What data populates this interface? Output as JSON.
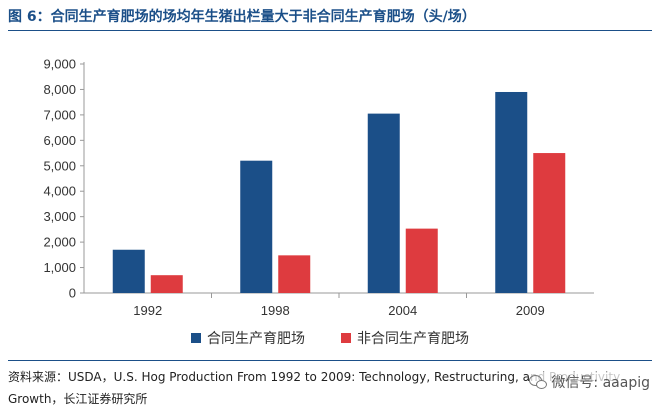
{
  "figure_title": "图 6：合同生产育肥场的场均年生猪出栏量大于非合同生产育肥场（头/场）",
  "chart_data": {
    "type": "bar",
    "categories": [
      "1992",
      "1998",
      "2004",
      "2009"
    ],
    "series": [
      {
        "name": "合同生产育肥场",
        "values": [
          1700,
          5200,
          7050,
          7900
        ],
        "color": "#1b4f88"
      },
      {
        "name": "非合同生产育肥场",
        "values": [
          700,
          1480,
          2530,
          5500
        ],
        "color": "#de3b3f"
      }
    ],
    "yticks": [
      "0",
      "1,000",
      "2,000",
      "3,000",
      "4,000",
      "5,000",
      "6,000",
      "7,000",
      "8,000",
      "9,000"
    ],
    "ylim": [
      0,
      9000
    ],
    "title": "",
    "xlabel": "",
    "ylabel": "",
    "legend_position": "bottom"
  },
  "source": {
    "line1": "资料来源：USDA，U.S. Hog Production From 1992 to 2009: Technology, Restructuring, and Productivity",
    "line2": "Growth，长江证券研究所"
  },
  "watermark": "微信号: aaapig"
}
